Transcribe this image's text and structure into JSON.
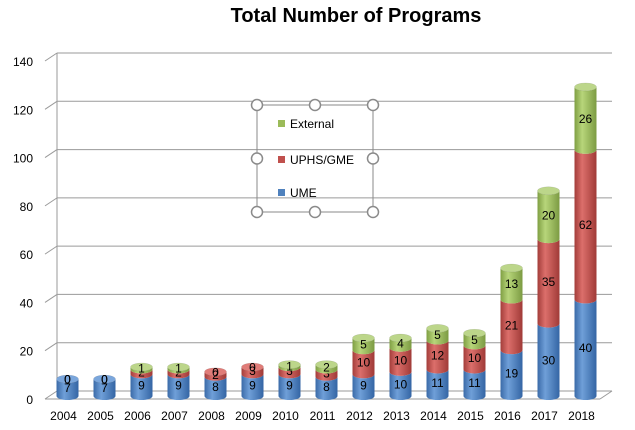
{
  "chart_data": {
    "type": "bar",
    "stacked": true,
    "style": "3d-cylinder",
    "title": "Total Number of Programs",
    "xlabel": "",
    "ylabel": "",
    "ylim": [
      0,
      140
    ],
    "yticks": [
      "0",
      "20",
      "40",
      "60",
      "80",
      "100",
      "120",
      "140"
    ],
    "grid": true,
    "legend_position": "center",
    "categories": [
      "2004",
      "2005",
      "2006",
      "2007",
      "2008",
      "2009",
      "2010",
      "2011",
      "2012",
      "2013",
      "2014",
      "2015",
      "2016",
      "2017",
      "2018"
    ],
    "series": [
      {
        "name": "UME",
        "color": "#4f81bd",
        "values": [
          7,
          7,
          9,
          9,
          8,
          9,
          9,
          8,
          9,
          10,
          11,
          11,
          19,
          30,
          40
        ]
      },
      {
        "name": "UPHS/GME",
        "color": "#c0504d",
        "values": [
          0,
          0,
          2,
          2,
          2,
          3,
          3,
          3,
          10,
          10,
          12,
          10,
          21,
          35,
          62
        ]
      },
      {
        "name": "External",
        "color": "#9bbb59",
        "values": [
          0,
          0,
          1,
          1,
          0,
          0,
          1,
          2,
          5,
          4,
          5,
          5,
          13,
          20,
          26
        ]
      }
    ]
  }
}
